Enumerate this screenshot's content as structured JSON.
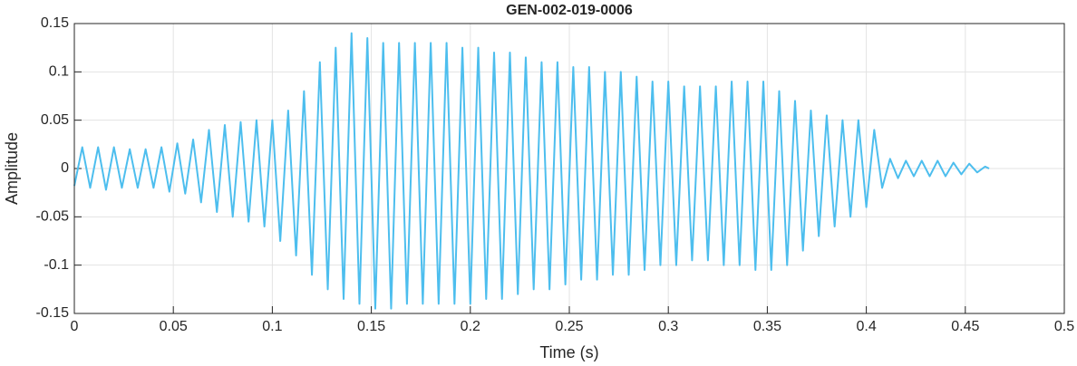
{
  "chart_data": {
    "type": "line",
    "title": "GEN-002-019-0006",
    "x_label": "Time (s)",
    "y_label": "Amplitude",
    "color": "#4dbeee",
    "grid": true,
    "xlim": [
      0,
      0.5
    ],
    "xticks": [
      0,
      0.05,
      0.1,
      0.15,
      0.2,
      0.25,
      0.3,
      0.35,
      0.4,
      0.45,
      0.5
    ],
    "ylim": [
      -0.15,
      0.15
    ],
    "yticks": [
      -0.15,
      -0.1,
      -0.05,
      0,
      0.05,
      0.1,
      0.15
    ],
    "x": [
      0,
      0.004,
      0.008,
      0.012,
      0.016,
      0.02,
      0.024,
      0.028,
      0.032,
      0.036,
      0.04,
      0.044,
      0.048,
      0.052,
      0.056,
      0.06,
      0.064,
      0.068,
      0.072,
      0.076,
      0.08,
      0.084,
      0.088,
      0.092,
      0.096,
      0.1,
      0.104,
      0.108,
      0.112,
      0.116,
      0.12,
      0.124,
      0.128,
      0.132,
      0.136,
      0.14,
      0.144,
      0.148,
      0.152,
      0.156,
      0.16,
      0.164,
      0.168,
      0.172,
      0.176,
      0.18,
      0.184,
      0.188,
      0.192,
      0.196,
      0.2,
      0.204,
      0.208,
      0.212,
      0.216,
      0.22,
      0.224,
      0.228,
      0.232,
      0.236,
      0.24,
      0.244,
      0.248,
      0.252,
      0.256,
      0.26,
      0.264,
      0.268,
      0.272,
      0.276,
      0.28,
      0.284,
      0.288,
      0.292,
      0.296,
      0.3,
      0.304,
      0.308,
      0.312,
      0.316,
      0.32,
      0.324,
      0.328,
      0.332,
      0.336,
      0.34,
      0.344,
      0.348,
      0.352,
      0.356,
      0.36,
      0.364,
      0.368,
      0.372,
      0.376,
      0.38,
      0.384,
      0.388,
      0.392,
      0.396,
      0.4,
      0.404,
      0.408,
      0.412,
      0.416,
      0.42,
      0.424,
      0.428,
      0.432,
      0.436,
      0.44,
      0.444,
      0.448,
      0.452,
      0.456,
      0.46,
      0.462
    ],
    "values": [
      -0.018,
      0.022,
      -0.02,
      0.022,
      -0.022,
      0.022,
      -0.02,
      0.02,
      -0.02,
      0.02,
      -0.02,
      0.022,
      -0.024,
      0.026,
      -0.026,
      0.03,
      -0.035,
      0.04,
      -0.045,
      0.045,
      -0.05,
      0.048,
      -0.055,
      0.05,
      -0.06,
      0.05,
      -0.075,
      0.06,
      -0.09,
      0.08,
      -0.11,
      0.11,
      -0.125,
      0.125,
      -0.135,
      0.14,
      -0.14,
      0.135,
      -0.145,
      0.13,
      -0.145,
      0.13,
      -0.14,
      0.13,
      -0.14,
      0.13,
      -0.14,
      0.13,
      -0.14,
      0.125,
      -0.14,
      0.125,
      -0.135,
      0.12,
      -0.135,
      0.12,
      -0.13,
      0.115,
      -0.125,
      0.11,
      -0.125,
      0.11,
      -0.12,
      0.105,
      -0.115,
      0.105,
      -0.115,
      0.1,
      -0.11,
      0.1,
      -0.11,
      0.095,
      -0.105,
      0.09,
      -0.1,
      0.09,
      -0.1,
      0.085,
      -0.095,
      0.085,
      -0.095,
      0.085,
      -0.1,
      0.09,
      -0.1,
      0.09,
      -0.105,
      0.09,
      -0.105,
      0.08,
      -0.1,
      0.07,
      -0.085,
      0.06,
      -0.07,
      0.055,
      -0.06,
      0.05,
      -0.05,
      0.05,
      -0.04,
      0.04,
      -0.02,
      0.01,
      -0.01,
      0.008,
      -0.008,
      0.008,
      -0.008,
      0.008,
      -0.008,
      0.006,
      -0.006,
      0.005,
      -0.004,
      0.002,
      0
    ]
  }
}
